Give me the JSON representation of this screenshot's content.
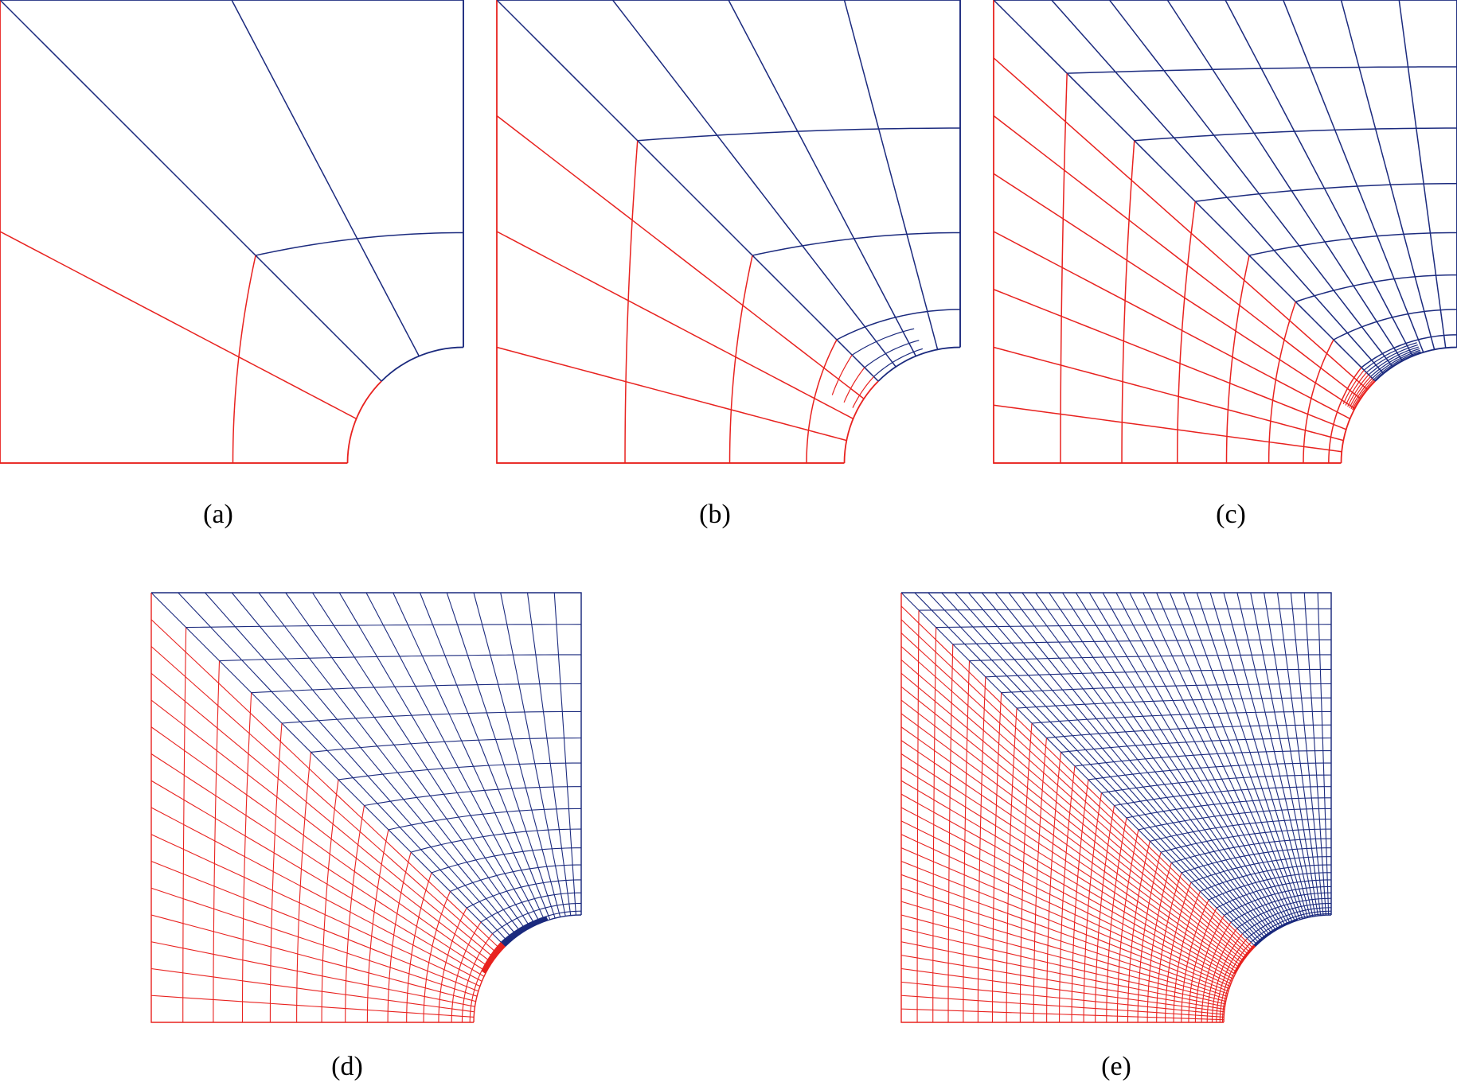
{
  "figure": {
    "description_free": true,
    "colors": {
      "refined_region": "#e8221f",
      "coarse_region": "#1b2a7e",
      "background": "#ffffff"
    },
    "panels": [
      {
        "id": "a",
        "label": "(a)",
        "refinement_level": 0
      },
      {
        "id": "b",
        "label": "(b)",
        "refinement_level": 1
      },
      {
        "id": "c",
        "label": "(c)",
        "refinement_level": 2
      },
      {
        "id": "d",
        "label": "(d)",
        "refinement_level": 3
      },
      {
        "id": "e",
        "label": "(e)",
        "refinement_level": 4
      }
    ]
  }
}
